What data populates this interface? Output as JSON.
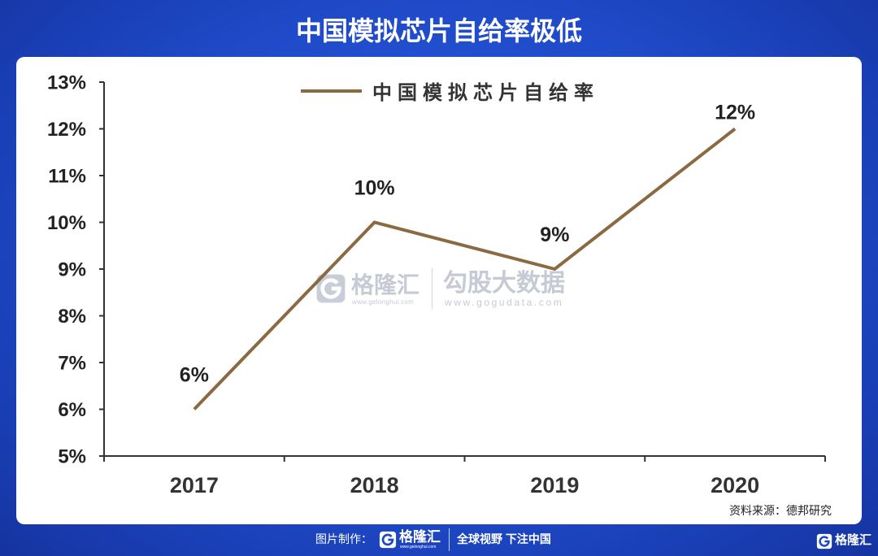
{
  "chart_data": {
    "type": "line",
    "title": "中国模拟芯片自给率极低",
    "categories": [
      "2017",
      "2018",
      "2019",
      "2020"
    ],
    "series": [
      {
        "name": "中国模拟芯片自给率",
        "values": [
          6,
          10,
          9,
          12
        ],
        "data_labels": [
          "6%",
          "10%",
          "9%",
          "12%"
        ],
        "color": "#8b6a42"
      }
    ],
    "ylim": [
      5,
      13
    ],
    "yticks": [
      5,
      6,
      7,
      8,
      9,
      10,
      11,
      12,
      13
    ],
    "ytick_labels": [
      "5%",
      "6%",
      "7%",
      "8%",
      "9%",
      "10%",
      "11%",
      "12%",
      "13%"
    ],
    "grid": false,
    "legend_position": "top-center"
  },
  "source": "资料来源：德邦研究",
  "watermark": {
    "brand": "格隆汇",
    "brand_url": "www.gelonghui.com",
    "partner": "勾股大数据",
    "partner_url": "www.gogudata.com",
    "logo_icon": "gelonghui-logo-icon"
  },
  "footer": {
    "made_by_label": "图片制作：",
    "brand": "格隆汇",
    "brand_url": "www.gelonghui.com",
    "slogan": "全球视野 下注中国",
    "corner_brand": "格隆汇",
    "logo_icon": "gelonghui-logo-icon"
  }
}
